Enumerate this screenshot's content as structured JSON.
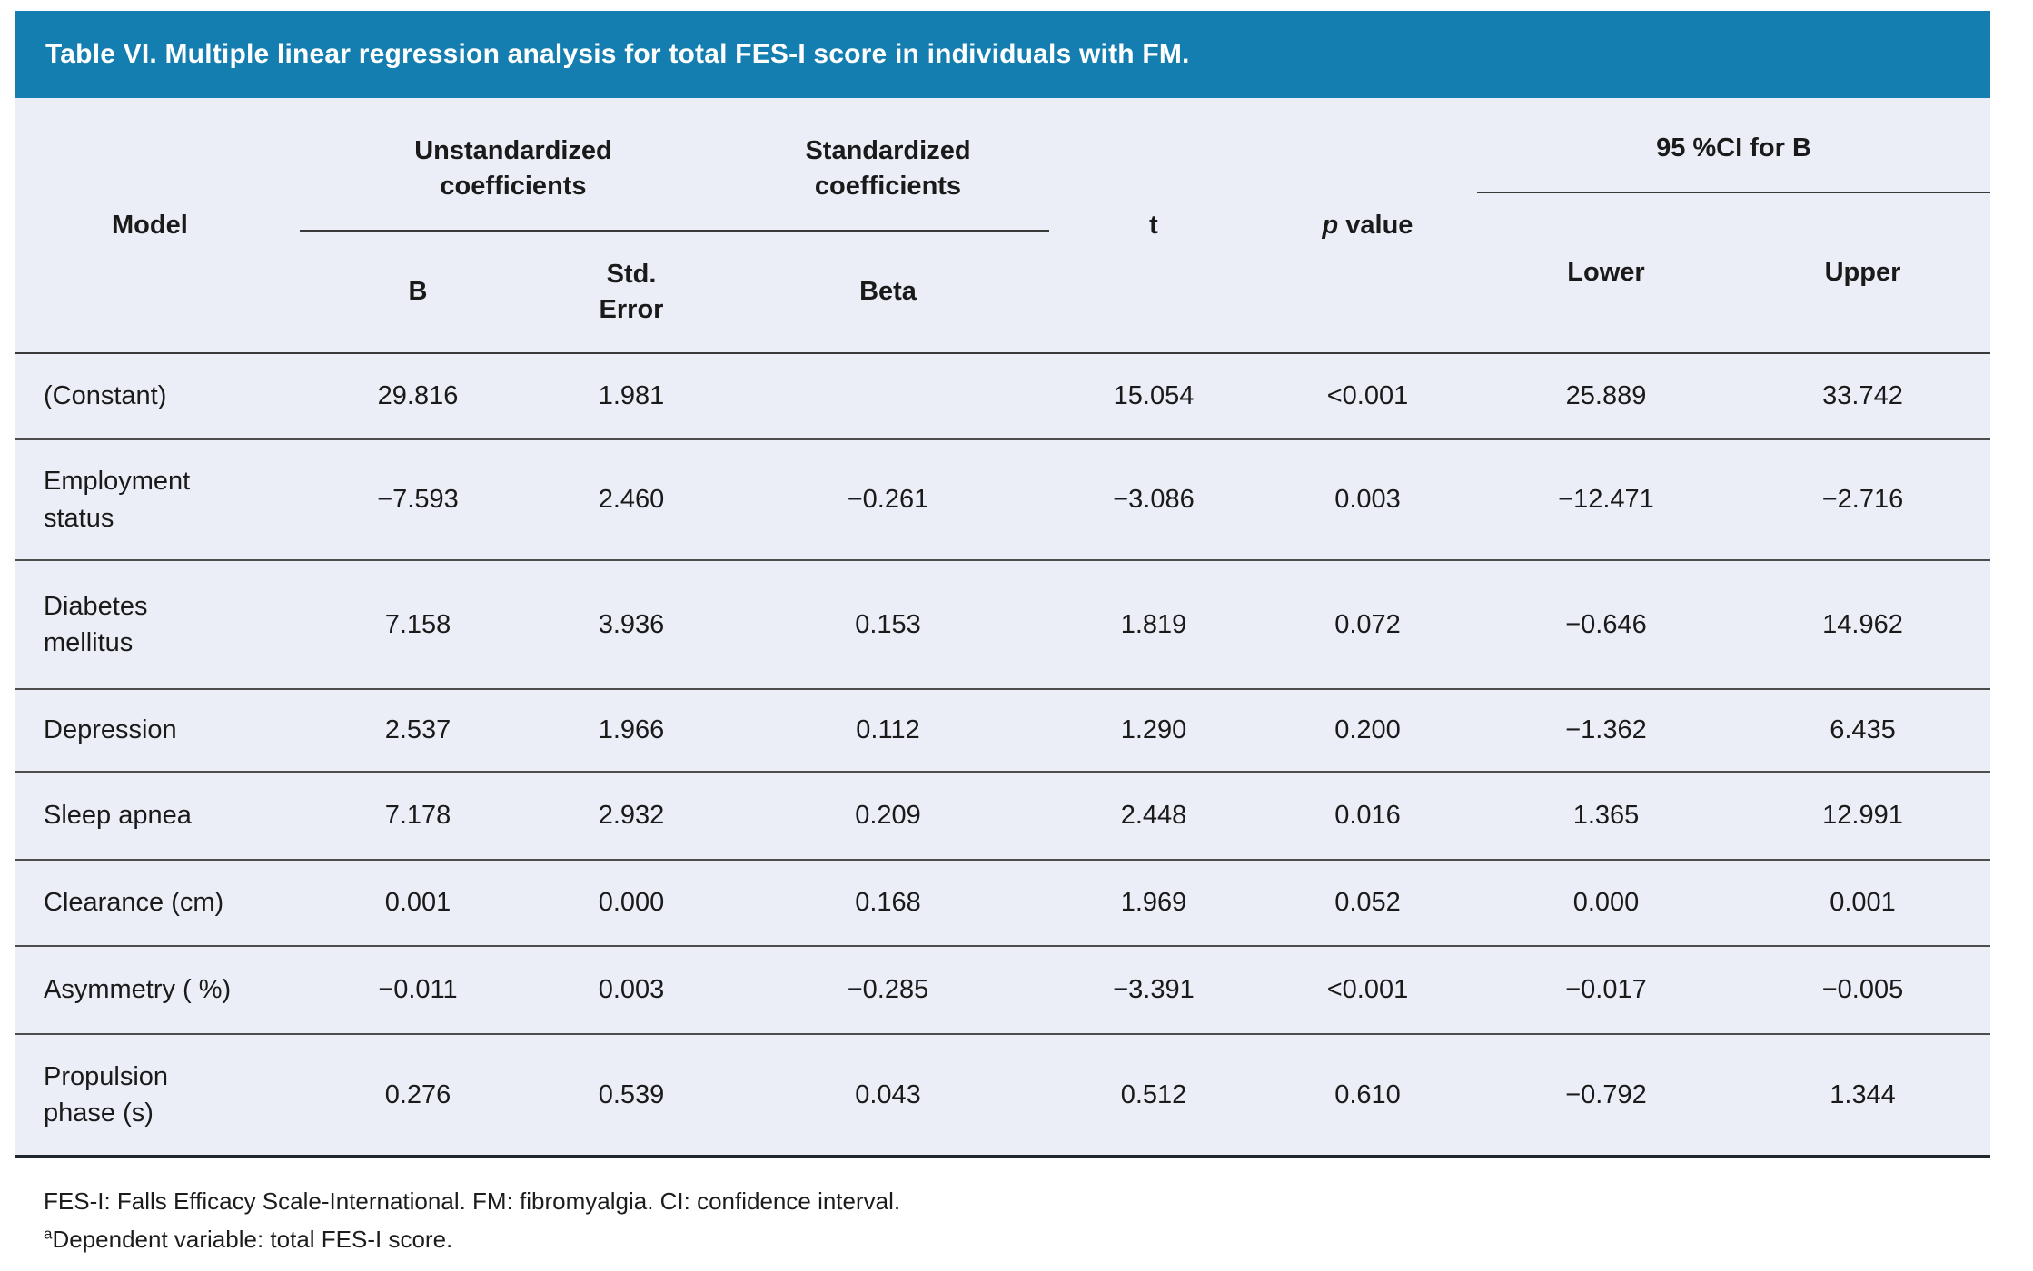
{
  "title": "Table VI. Multiple linear regression analysis for total FES-I score in individuals with FM.",
  "header": {
    "model": "Model",
    "group_unstd": "Unstandardized\ncoefficients",
    "group_std": "Standardized\ncoefficients",
    "col_b": "B",
    "col_std_error": "Std.\nError",
    "col_beta": "Beta",
    "col_t": "t",
    "col_p_italic": "p",
    "col_p_rest": "value",
    "group_ci": "95 %CI for B",
    "col_lower": "Lower",
    "col_upper": "Upper"
  },
  "rows": [
    {
      "model": "(Constant)",
      "b": "29.816",
      "std_error": "1.981",
      "beta": "",
      "t": "15.054",
      "p": "<0.001",
      "lower": "25.889",
      "upper": "33.742"
    },
    {
      "model": "Employment\nstatus",
      "b": "−7.593",
      "std_error": "2.460",
      "beta": "−0.261",
      "t": "−3.086",
      "p": "0.003",
      "lower": "−12.471",
      "upper": "−2.716"
    },
    {
      "model": "Diabetes\nmellitus",
      "b": "7.158",
      "std_error": "3.936",
      "beta": "0.153",
      "t": "1.819",
      "p": "0.072",
      "lower": "−0.646",
      "upper": "14.962"
    },
    {
      "model": "Depression",
      "b": "2.537",
      "std_error": "1.966",
      "beta": "0.112",
      "t": "1.290",
      "p": "0.200",
      "lower": "−1.362",
      "upper": "6.435"
    },
    {
      "model": "Sleep apnea",
      "b": "7.178",
      "std_error": "2.932",
      "beta": "0.209",
      "t": "2.448",
      "p": "0.016",
      "lower": "1.365",
      "upper": "12.991"
    },
    {
      "model": "Clearance (cm)",
      "b": "0.001",
      "std_error": "0.000",
      "beta": "0.168",
      "t": "1.969",
      "p": "0.052",
      "lower": "0.000",
      "upper": "0.001"
    },
    {
      "model": "Asymmetry ( %)",
      "b": "−0.011",
      "std_error": "0.003",
      "beta": "−0.285",
      "t": "−3.391",
      "p": "<0.001",
      "lower": "−0.017",
      "upper": "−0.005"
    },
    {
      "model": "Propulsion\nphase (s)",
      "b": "0.276",
      "std_error": "0.539",
      "beta": "0.043",
      "t": "0.512",
      "p": "0.610",
      "lower": "−0.792",
      "upper": "1.344"
    }
  ],
  "footnotes": {
    "line1": "FES-I: Falls Efficacy Scale-International. FM: fibromyalgia. CI: confidence interval.",
    "line2_sup": "a",
    "line2_text": "Dependent variable: total FES-I score."
  },
  "colors": {
    "accent_blue": "#157EB1",
    "table_background": "#EBEEF6",
    "rule_gray": "#4d4d4d",
    "title_text": "#FFFFFF"
  }
}
